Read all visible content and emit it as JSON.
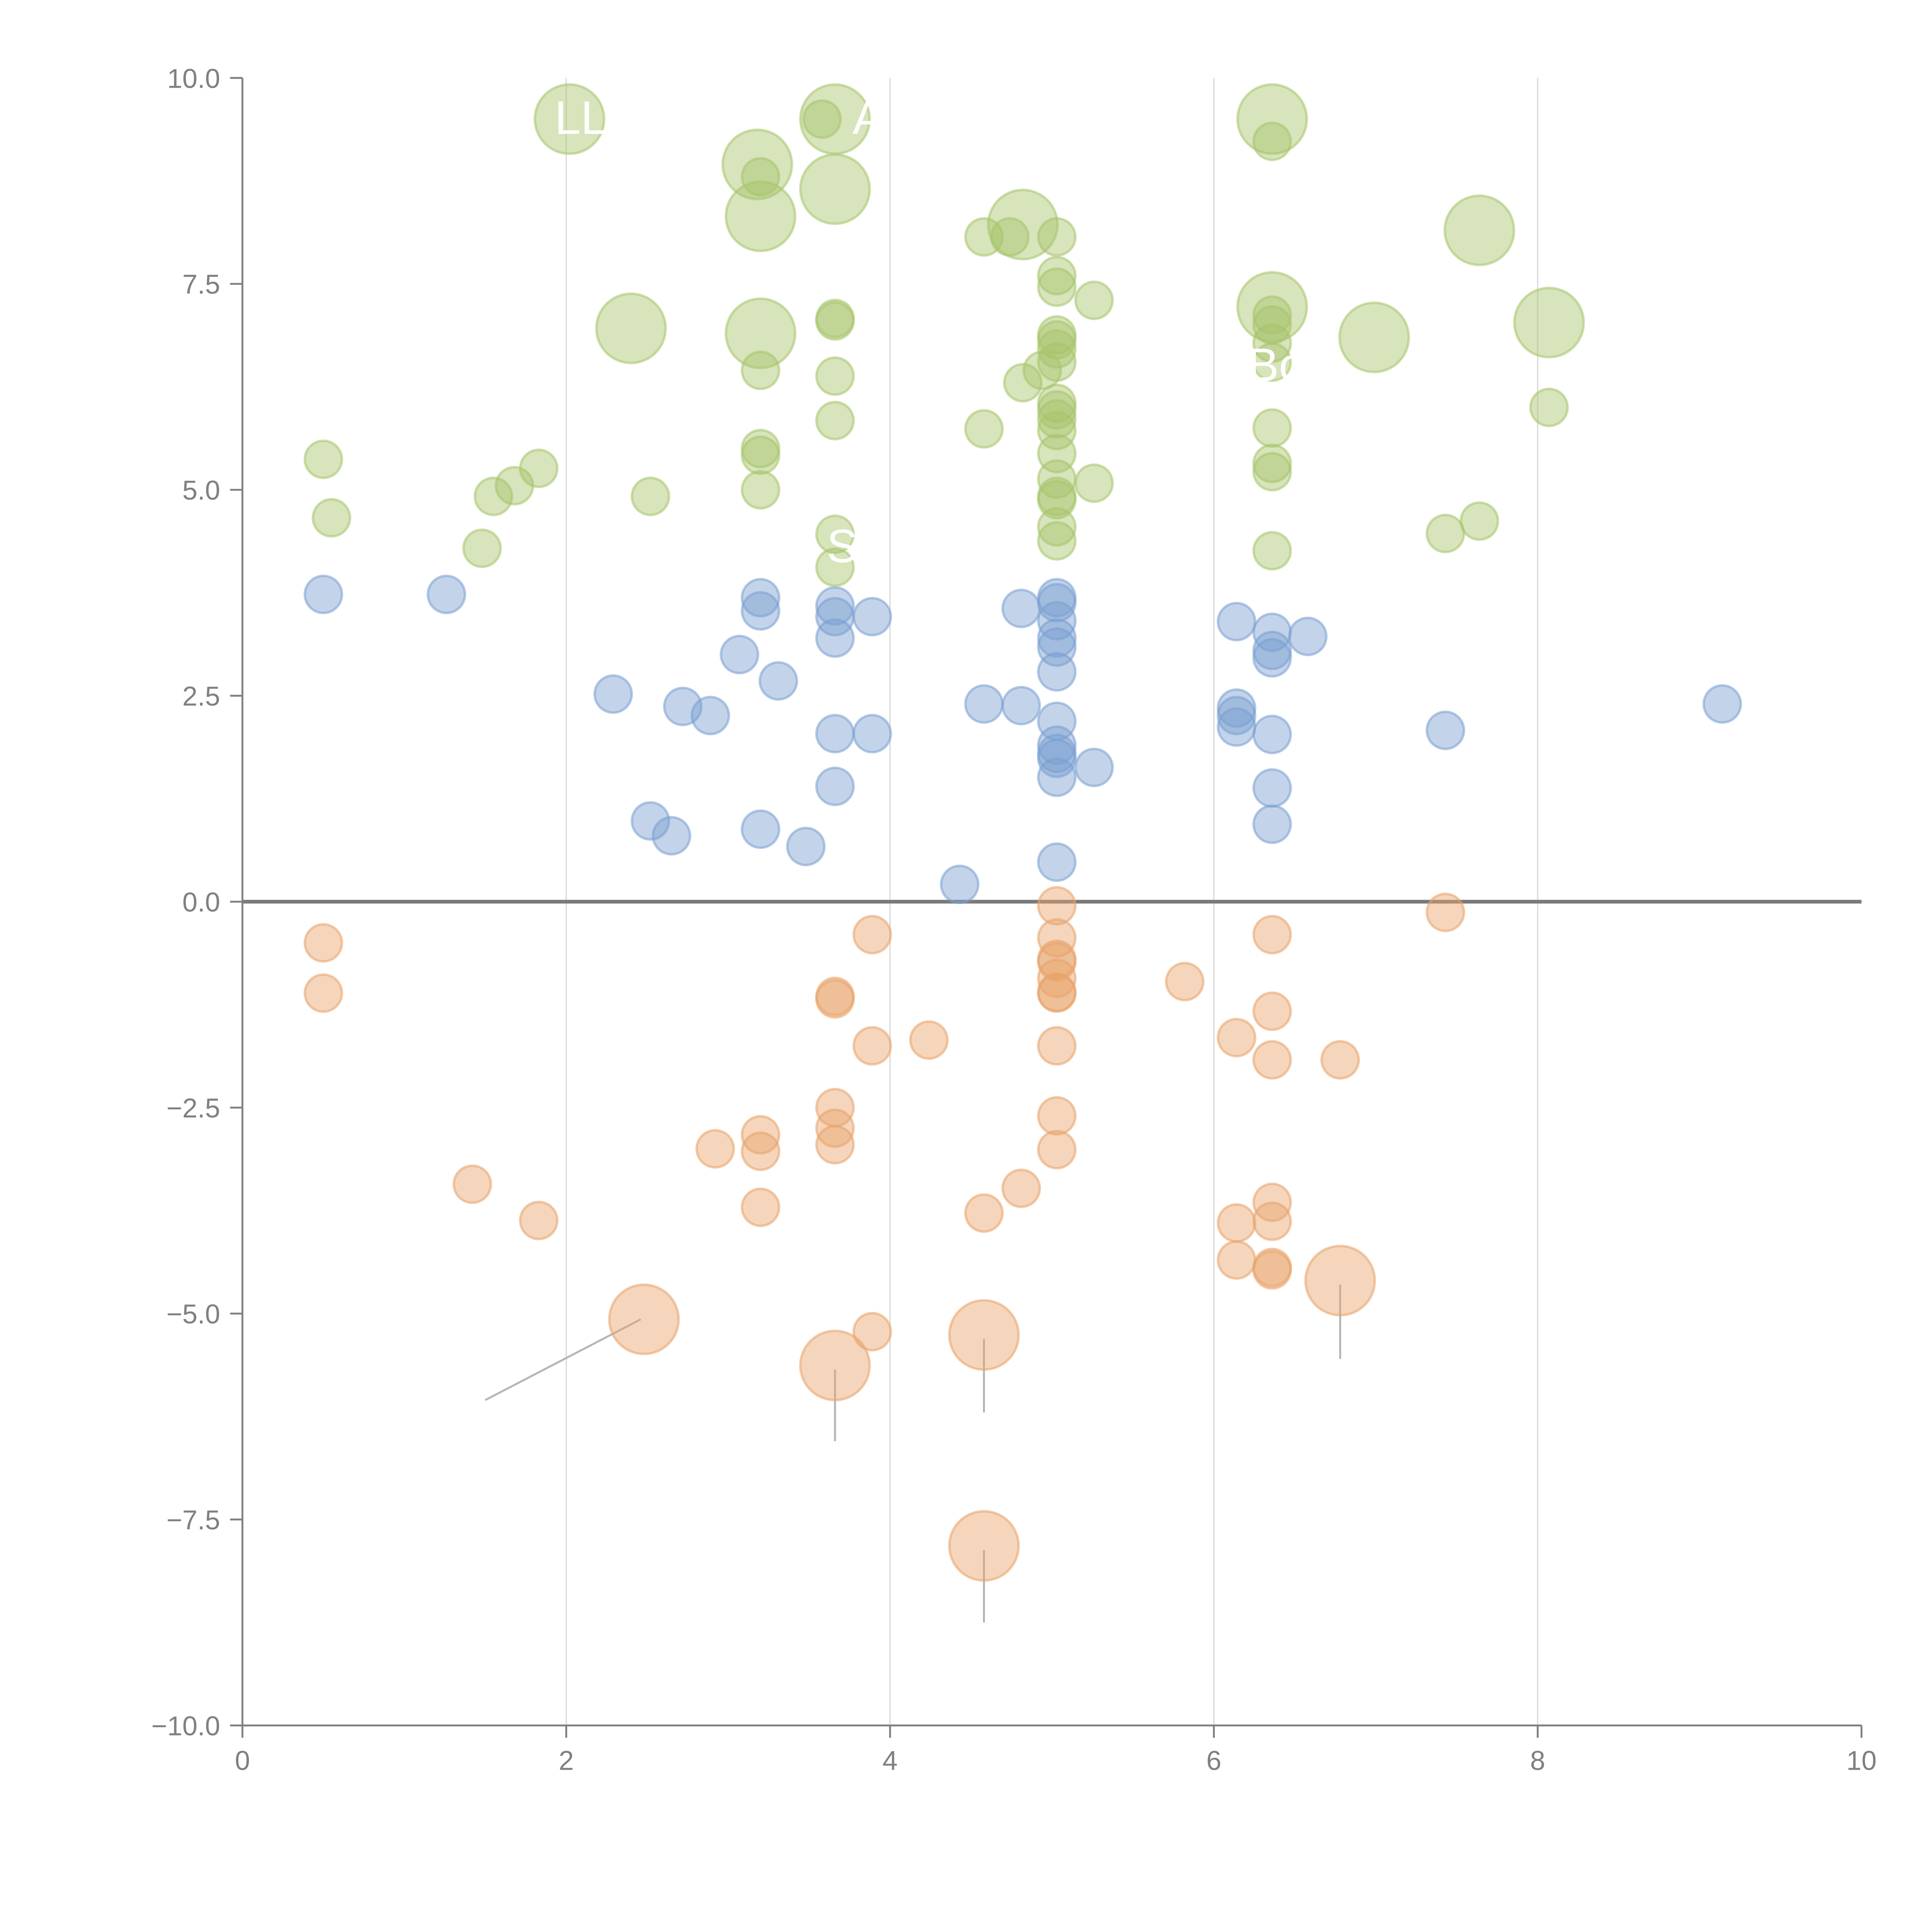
{
  "chart_data": {
    "type": "scatter",
    "subtype": "bubble",
    "title": "",
    "xlabel": "",
    "ylabel": "",
    "xlim": [
      0,
      10
    ],
    "ylim": [
      -10,
      10
    ],
    "x_ticks": [
      "0",
      "2",
      "4",
      "6",
      "8",
      "10"
    ],
    "y_ticks": [
      "10.0",
      "7.5",
      "5.0",
      "2.5",
      "0.0",
      "−2.5",
      "−5.0",
      "−7.5",
      "−10.0"
    ],
    "x_tick_values": [
      0,
      2,
      4,
      6,
      8,
      10
    ],
    "y_tick_values": [
      10,
      7.5,
      5,
      2.5,
      0,
      -2.5,
      -5,
      -7.5,
      -10
    ],
    "grid": "vertical lines at x ticks",
    "reference_line_y": 0,
    "colors": {
      "green": "#a6c46a",
      "blue": "#7a9fd1",
      "orange": "#e8a36a",
      "axis": "#808080",
      "grid": "#d9d9d9"
    },
    "series": [
      {
        "name": "green",
        "color": "#a6c46a",
        "points": [
          {
            "x": 0.5,
            "y": 5.37,
            "s": 1
          },
          {
            "x": 0.55,
            "y": 4.66,
            "s": 1
          },
          {
            "x": 1.48,
            "y": 4.29,
            "s": 1
          },
          {
            "x": 1.55,
            "y": 4.92,
            "s": 1
          },
          {
            "x": 1.68,
            "y": 5.05,
            "s": 1
          },
          {
            "x": 1.83,
            "y": 5.26,
            "s": 1
          },
          {
            "x": 2.02,
            "y": 9.5,
            "s": 2
          },
          {
            "x": 2.4,
            "y": 6.96,
            "s": 2
          },
          {
            "x": 2.52,
            "y": 4.92,
            "s": 1
          },
          {
            "x": 3.18,
            "y": 8.95,
            "s": 2
          },
          {
            "x": 3.2,
            "y": 8.8,
            "s": 1
          },
          {
            "x": 3.2,
            "y": 8.32,
            "s": 2
          },
          {
            "x": 3.2,
            "y": 6.9,
            "s": 2
          },
          {
            "x": 3.2,
            "y": 6.45,
            "s": 1
          },
          {
            "x": 3.2,
            "y": 5.5,
            "s": 1
          },
          {
            "x": 3.2,
            "y": 5.42,
            "s": 1
          },
          {
            "x": 3.2,
            "y": 5.0,
            "s": 1
          },
          {
            "x": 3.58,
            "y": 9.5,
            "s": 1
          },
          {
            "x": 3.66,
            "y": 9.5,
            "s": 2
          },
          {
            "x": 3.66,
            "y": 8.65,
            "s": 2
          },
          {
            "x": 3.66,
            "y": 7.05,
            "s": 1
          },
          {
            "x": 3.66,
            "y": 7.08,
            "s": 1
          },
          {
            "x": 3.66,
            "y": 6.38,
            "s": 1
          },
          {
            "x": 3.66,
            "y": 5.84,
            "s": 1
          },
          {
            "x": 3.66,
            "y": 4.46,
            "s": 1
          },
          {
            "x": 3.66,
            "y": 4.06,
            "s": 1
          },
          {
            "x": 4.58,
            "y": 8.07,
            "s": 1
          },
          {
            "x": 4.74,
            "y": 8.07,
            "s": 1
          },
          {
            "x": 4.82,
            "y": 8.22,
            "s": 2
          },
          {
            "x": 5.03,
            "y": 8.07,
            "s": 1
          },
          {
            "x": 5.03,
            "y": 7.6,
            "s": 1
          },
          {
            "x": 5.03,
            "y": 7.46,
            "s": 1
          },
          {
            "x": 5.26,
            "y": 7.3,
            "s": 1
          },
          {
            "x": 5.03,
            "y": 6.88,
            "s": 1
          },
          {
            "x": 5.03,
            "y": 6.82,
            "s": 1
          },
          {
            "x": 5.03,
            "y": 6.71,
            "s": 1
          },
          {
            "x": 5.03,
            "y": 6.55,
            "s": 1
          },
          {
            "x": 4.94,
            "y": 6.45,
            "s": 1
          },
          {
            "x": 4.82,
            "y": 6.3,
            "s": 1
          },
          {
            "x": 5.03,
            "y": 6.05,
            "s": 1
          },
          {
            "x": 5.03,
            "y": 5.97,
            "s": 1
          },
          {
            "x": 5.03,
            "y": 5.86,
            "s": 1
          },
          {
            "x": 5.03,
            "y": 5.72,
            "s": 1
          },
          {
            "x": 4.58,
            "y": 5.74,
            "s": 1
          },
          {
            "x": 5.03,
            "y": 5.44,
            "s": 1
          },
          {
            "x": 5.03,
            "y": 5.13,
            "s": 1
          },
          {
            "x": 5.26,
            "y": 5.08,
            "s": 1
          },
          {
            "x": 5.03,
            "y": 4.92,
            "s": 1
          },
          {
            "x": 5.03,
            "y": 4.88,
            "s": 1
          },
          {
            "x": 5.03,
            "y": 4.55,
            "s": 1
          },
          {
            "x": 5.03,
            "y": 4.38,
            "s": 1
          },
          {
            "x": 6.36,
            "y": 9.5,
            "s": 2
          },
          {
            "x": 6.36,
            "y": 9.23,
            "s": 1
          },
          {
            "x": 6.36,
            "y": 7.22,
            "s": 2
          },
          {
            "x": 6.36,
            "y": 7.12,
            "s": 1
          },
          {
            "x": 6.36,
            "y": 7.0,
            "s": 1
          },
          {
            "x": 6.36,
            "y": 6.78,
            "s": 1
          },
          {
            "x": 6.36,
            "y": 6.55,
            "s": 1
          },
          {
            "x": 6.36,
            "y": 5.75,
            "s": 1
          },
          {
            "x": 6.36,
            "y": 5.32,
            "s": 1
          },
          {
            "x": 6.36,
            "y": 5.22,
            "s": 1
          },
          {
            "x": 6.36,
            "y": 4.26,
            "s": 1
          },
          {
            "x": 6.99,
            "y": 6.85,
            "s": 2
          },
          {
            "x": 7.43,
            "y": 4.47,
            "s": 1
          },
          {
            "x": 7.64,
            "y": 8.15,
            "s": 2
          },
          {
            "x": 7.64,
            "y": 4.62,
            "s": 1
          },
          {
            "x": 8.07,
            "y": 7.03,
            "s": 2
          },
          {
            "x": 8.07,
            "y": 6.0,
            "s": 1
          }
        ]
      },
      {
        "name": "blue",
        "color": "#7a9fd1",
        "points": [
          {
            "x": 0.5,
            "y": 3.73,
            "s": 1
          },
          {
            "x": 1.26,
            "y": 3.73,
            "s": 1
          },
          {
            "x": 2.29,
            "y": 2.52,
            "s": 1
          },
          {
            "x": 2.52,
            "y": 0.98,
            "s": 1
          },
          {
            "x": 2.65,
            "y": 0.8,
            "s": 1
          },
          {
            "x": 2.72,
            "y": 2.37,
            "s": 1
          },
          {
            "x": 2.89,
            "y": 2.26,
            "s": 1
          },
          {
            "x": 3.07,
            "y": 3.0,
            "s": 1
          },
          {
            "x": 3.2,
            "y": 3.69,
            "s": 1
          },
          {
            "x": 3.2,
            "y": 3.53,
            "s": 1
          },
          {
            "x": 3.2,
            "y": 0.88,
            "s": 1
          },
          {
            "x": 3.31,
            "y": 2.68,
            "s": 1
          },
          {
            "x": 3.48,
            "y": 0.67,
            "s": 1
          },
          {
            "x": 3.66,
            "y": 3.59,
            "s": 1
          },
          {
            "x": 3.66,
            "y": 3.46,
            "s": 1
          },
          {
            "x": 3.66,
            "y": 3.2,
            "s": 1
          },
          {
            "x": 3.66,
            "y": 2.04,
            "s": 1
          },
          {
            "x": 3.66,
            "y": 1.4,
            "s": 1
          },
          {
            "x": 3.89,
            "y": 3.46,
            "s": 1
          },
          {
            "x": 3.89,
            "y": 2.04,
            "s": 1
          },
          {
            "x": 4.43,
            "y": 0.21,
            "s": 1
          },
          {
            "x": 4.58,
            "y": 2.4,
            "s": 1
          },
          {
            "x": 4.81,
            "y": 2.38,
            "s": 1
          },
          {
            "x": 4.81,
            "y": 3.56,
            "s": 1
          },
          {
            "x": 5.03,
            "y": 3.69,
            "s": 1
          },
          {
            "x": 5.03,
            "y": 3.63,
            "s": 1
          },
          {
            "x": 5.03,
            "y": 3.41,
            "s": 1
          },
          {
            "x": 5.03,
            "y": 3.2,
            "s": 1
          },
          {
            "x": 5.03,
            "y": 3.09,
            "s": 1
          },
          {
            "x": 5.03,
            "y": 2.79,
            "s": 1
          },
          {
            "x": 5.03,
            "y": 2.19,
            "s": 1
          },
          {
            "x": 5.03,
            "y": 1.9,
            "s": 1
          },
          {
            "x": 5.03,
            "y": 1.8,
            "s": 1
          },
          {
            "x": 5.03,
            "y": 1.74,
            "s": 1
          },
          {
            "x": 5.03,
            "y": 1.51,
            "s": 1
          },
          {
            "x": 5.03,
            "y": 0.48,
            "s": 1
          },
          {
            "x": 5.26,
            "y": 1.63,
            "s": 1
          },
          {
            "x": 6.14,
            "y": 3.4,
            "s": 1
          },
          {
            "x": 6.14,
            "y": 2.35,
            "s": 1
          },
          {
            "x": 6.14,
            "y": 2.26,
            "s": 1
          },
          {
            "x": 6.14,
            "y": 2.12,
            "s": 1
          },
          {
            "x": 6.36,
            "y": 3.27,
            "s": 1
          },
          {
            "x": 6.36,
            "y": 3.05,
            "s": 1
          },
          {
            "x": 6.36,
            "y": 2.96,
            "s": 1
          },
          {
            "x": 6.36,
            "y": 2.03,
            "s": 1
          },
          {
            "x": 6.36,
            "y": 1.38,
            "s": 1
          },
          {
            "x": 6.36,
            "y": 0.94,
            "s": 1
          },
          {
            "x": 6.58,
            "y": 3.22,
            "s": 1
          },
          {
            "x": 7.43,
            "y": 2.08,
            "s": 1
          },
          {
            "x": 9.14,
            "y": 2.4,
            "s": 1
          }
        ]
      },
      {
        "name": "orange",
        "color": "#e8a36a",
        "points": [
          {
            "x": 0.5,
            "y": -0.5,
            "s": 1
          },
          {
            "x": 0.5,
            "y": -1.11,
            "s": 1
          },
          {
            "x": 1.42,
            "y": -3.43,
            "s": 1
          },
          {
            "x": 1.83,
            "y": -3.87,
            "s": 1
          },
          {
            "x": 2.48,
            "y": -5.07,
            "s": 2
          },
          {
            "x": 2.92,
            "y": -3.0,
            "s": 1
          },
          {
            "x": 3.2,
            "y": -2.83,
            "s": 1
          },
          {
            "x": 3.2,
            "y": -3.03,
            "s": 1
          },
          {
            "x": 3.2,
            "y": -3.71,
            "s": 1
          },
          {
            "x": 3.66,
            "y": -1.15,
            "s": 1
          },
          {
            "x": 3.66,
            "y": -1.18,
            "s": 1
          },
          {
            "x": 3.66,
            "y": -2.5,
            "s": 1
          },
          {
            "x": 3.66,
            "y": -2.75,
            "s": 1
          },
          {
            "x": 3.66,
            "y": -2.95,
            "s": 1
          },
          {
            "x": 3.66,
            "y": -5.63,
            "s": 2
          },
          {
            "x": 3.89,
            "y": -0.4,
            "s": 1
          },
          {
            "x": 3.89,
            "y": -1.75,
            "s": 1
          },
          {
            "x": 3.89,
            "y": -5.22,
            "s": 1
          },
          {
            "x": 4.24,
            "y": -1.68,
            "s": 1
          },
          {
            "x": 4.58,
            "y": -3.78,
            "s": 1
          },
          {
            "x": 4.58,
            "y": -5.26,
            "s": 2
          },
          {
            "x": 4.58,
            "y": -7.82,
            "s": 2
          },
          {
            "x": 4.81,
            "y": -3.48,
            "s": 1
          },
          {
            "x": 5.03,
            "y": -0.05,
            "s": 1
          },
          {
            "x": 5.03,
            "y": -0.44,
            "s": 1
          },
          {
            "x": 5.03,
            "y": -0.7,
            "s": 1
          },
          {
            "x": 5.03,
            "y": -0.73,
            "s": 1
          },
          {
            "x": 5.03,
            "y": -0.93,
            "s": 1
          },
          {
            "x": 5.03,
            "y": -1.1,
            "s": 1
          },
          {
            "x": 5.03,
            "y": -1.11,
            "s": 1
          },
          {
            "x": 5.03,
            "y": -1.75,
            "s": 1
          },
          {
            "x": 5.03,
            "y": -2.6,
            "s": 1
          },
          {
            "x": 5.03,
            "y": -3.01,
            "s": 1
          },
          {
            "x": 5.82,
            "y": -0.97,
            "s": 1
          },
          {
            "x": 6.14,
            "y": -1.65,
            "s": 1
          },
          {
            "x": 6.14,
            "y": -3.9,
            "s": 1
          },
          {
            "x": 6.14,
            "y": -4.35,
            "s": 1
          },
          {
            "x": 6.36,
            "y": -0.4,
            "s": 1
          },
          {
            "x": 6.36,
            "y": -1.33,
            "s": 1
          },
          {
            "x": 6.36,
            "y": -1.92,
            "s": 1
          },
          {
            "x": 6.36,
            "y": -3.65,
            "s": 1
          },
          {
            "x": 6.36,
            "y": -3.88,
            "s": 1
          },
          {
            "x": 6.36,
            "y": -4.44,
            "s": 1
          },
          {
            "x": 6.36,
            "y": -4.47,
            "s": 1
          },
          {
            "x": 6.78,
            "y": -1.92,
            "s": 1
          },
          {
            "x": 6.78,
            "y": -4.6,
            "s": 2
          },
          {
            "x": 7.43,
            "y": -0.13,
            "s": 1
          }
        ]
      }
    ],
    "labels": [
      {
        "text": "LL",
        "x": 2.02,
        "y": 9.5
      },
      {
        "text": "A",
        "x": 3.86,
        "y": 9.5
      },
      {
        "text": "S",
        "x": 3.7,
        "y": 4.3
      },
      {
        "text": "Boo",
        "x": 6.3,
        "y": 6.5
      }
    ],
    "leader_lines": [
      {
        "from": [
          2.46,
          -5.07
        ],
        "to": [
          1.5,
          -6.05
        ]
      },
      {
        "from": [
          3.66,
          -5.68
        ],
        "to": [
          3.66,
          -6.55
        ]
      },
      {
        "from": [
          4.58,
          -5.31
        ],
        "to": [
          4.58,
          -6.2
        ]
      },
      {
        "from": [
          4.58,
          -7.87
        ],
        "to": [
          4.58,
          -8.75
        ]
      },
      {
        "from": [
          6.78,
          -4.65
        ],
        "to": [
          6.78,
          -5.55
        ]
      }
    ]
  }
}
